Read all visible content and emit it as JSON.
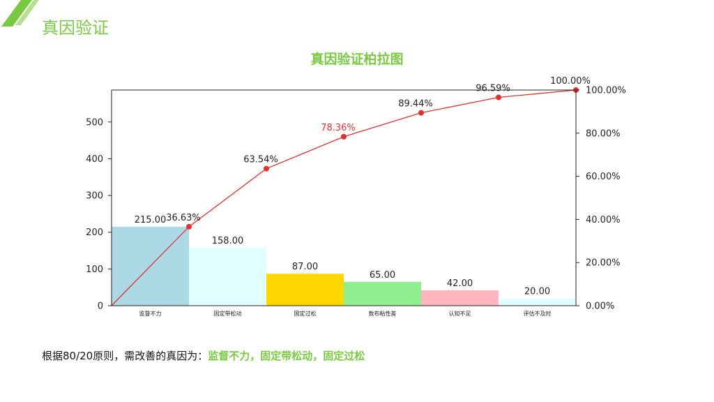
{
  "slide": {
    "title": "真因验证",
    "conclusion_prefix": "根据80/20原则，需改善的真因为：",
    "conclusion_highlight": "监督不力，固定带松动，固定过松"
  },
  "colors": {
    "accent": "#7ac943",
    "line": "#e03030",
    "highlight_label": "#e03030"
  },
  "chart_data": {
    "type": "bar",
    "title": "真因验证柏拉图",
    "categories": [
      "监督不力",
      "固定带松动",
      "固定过松",
      "敖布粘性差",
      "认知不足",
      "评估不及时"
    ],
    "values": [
      215,
      158,
      87,
      65,
      42,
      20
    ],
    "value_labels": [
      "215.00",
      "158.00",
      "87.00",
      "65.00",
      "42.00",
      "20.00"
    ],
    "bar_colors": [
      "#add8e6",
      "#e0ffff",
      "#ffd700",
      "#90ee90",
      "#ffb6c1",
      "#e0ffff"
    ],
    "cumulative_percent": [
      36.63,
      63.54,
      78.36,
      89.44,
      96.59,
      100.0
    ],
    "cumulative_labels": [
      "36.63%",
      "63.54%",
      "78.36%",
      "89.44%",
      "96.59%",
      "100.00%"
    ],
    "highlighted_cumulative_index": 2,
    "left_axis": {
      "ylim": [
        0,
        587
      ],
      "ticks": [
        0,
        100,
        200,
        300,
        400,
        500
      ]
    },
    "right_axis": {
      "ylim": [
        0,
        100
      ],
      "ticks": [
        "0.00%",
        "20.00%",
        "40.00%",
        "60.00%",
        "80.00%",
        "100.00%"
      ]
    },
    "grid": false,
    "legend": "none"
  }
}
